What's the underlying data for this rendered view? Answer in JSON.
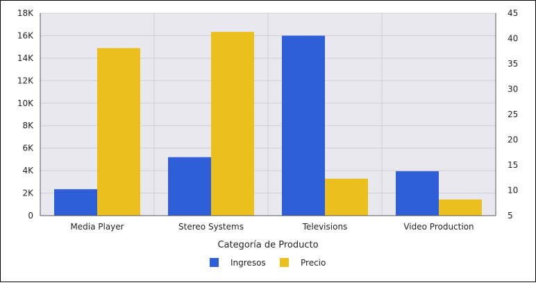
{
  "chart_data": {
    "type": "bar",
    "title": "",
    "xlabel": "Categoría de Producto",
    "ylabel": "",
    "y2label": "",
    "categories": [
      "Media Player",
      "Stereo Systems",
      "Televisions",
      "Video Production"
    ],
    "series": [
      {
        "name": "Ingresos",
        "axis": "left",
        "color": "#2f5fd8",
        "values": [
          2350,
          5200,
          16000,
          3950
        ]
      },
      {
        "name": "Precio",
        "axis": "right",
        "color": "#ebc01e",
        "values": [
          38.1,
          41.3,
          12.3,
          8.2
        ]
      }
    ],
    "ylim": [
      0,
      18000
    ],
    "y2lim": [
      5,
      45
    ],
    "yticks": [
      "0",
      "2K",
      "4K",
      "6K",
      "8K",
      "10K",
      "12K",
      "14K",
      "16K",
      "18K"
    ],
    "y2ticks": [
      "5",
      "10",
      "15",
      "20",
      "25",
      "30",
      "35",
      "40",
      "45"
    ],
    "grid": true,
    "legend": "bottom-center",
    "plot_background": "#e9e8ee"
  }
}
